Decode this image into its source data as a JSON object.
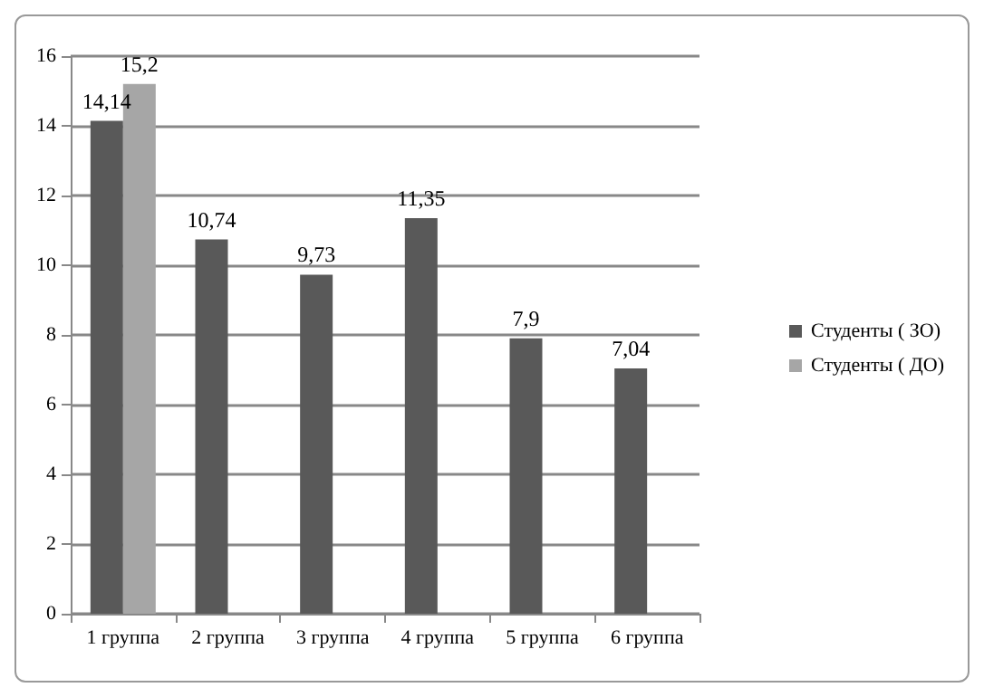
{
  "chart_data": {
    "type": "bar",
    "categories": [
      "1 группа",
      "2 группа",
      "3 группа",
      "4 группа",
      "5 группа",
      "6 группа"
    ],
    "series": [
      {
        "name": "Студенты ( ЗО)",
        "color": "#595959",
        "values": [
          14.14,
          10.74,
          9.73,
          11.35,
          7.9,
          7.04
        ],
        "value_labels": [
          "14,14",
          "10,74",
          "9,73",
          "11,35",
          "7,9",
          "7,04"
        ]
      },
      {
        "name": "Студенты ( ДО)",
        "color": "#a6a6a6",
        "values": [
          15.2,
          null,
          null,
          null,
          null,
          null
        ],
        "value_labels": [
          "15,2",
          null,
          null,
          null,
          null,
          null
        ]
      }
    ],
    "ylim": [
      0,
      16
    ],
    "yticks": [
      0,
      2,
      4,
      6,
      8,
      10,
      12,
      14,
      16
    ],
    "grid": "y",
    "legend": "right"
  }
}
